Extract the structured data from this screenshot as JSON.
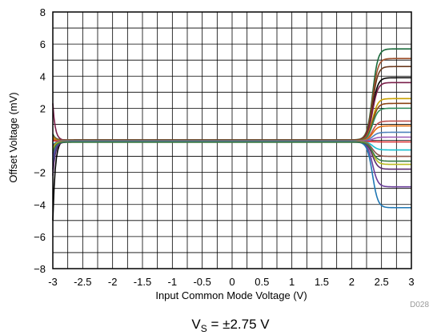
{
  "chart_data": {
    "type": "line",
    "xlabel": "Input Common Mode Voltage (V)",
    "ylabel": "Offset Voltage (mV)",
    "xlim": [
      -3,
      3
    ],
    "ylim": [
      -8,
      8
    ],
    "x_ticks": [
      -3,
      -2.5,
      -2,
      -1.5,
      -1,
      -0.5,
      0,
      0.5,
      1,
      1.5,
      2,
      2.5,
      3
    ],
    "x_tick_labels": [
      "-3",
      "-2.5",
      "-2",
      "-1.5",
      "-1",
      "-0.5",
      "0",
      "0.5",
      "1",
      "1.5",
      "2",
      "2.5",
      "3"
    ],
    "y_ticks": [
      -8,
      -6,
      -4,
      -2,
      2,
      4,
      6,
      8
    ],
    "y_tick_labels": [
      "−8",
      "−6",
      "−4",
      "−2",
      "2",
      "4",
      "6",
      "8"
    ],
    "grid": true,
    "figure_id": "D028",
    "condition": {
      "main": "V",
      "sub": "S",
      "rest": " = ±2.75 V"
    },
    "series": [
      {
        "color": "#1b6a3c",
        "left_end": 0.4,
        "right_end": 5.7
      },
      {
        "color": "#a0522d",
        "left_end": 0.3,
        "right_end": 5.1
      },
      {
        "color": "#000000",
        "left_end": -5.0,
        "right_end": 3.9
      },
      {
        "color": "#6b3a1e",
        "left_end": 0.2,
        "right_end": 4.6
      },
      {
        "color": "#7a1f4a",
        "left_end": 2.3,
        "right_end": 3.6
      },
      {
        "color": "#c8a000",
        "left_end": 0.2,
        "right_end": 2.6
      },
      {
        "color": "#8b4513",
        "left_end": 0.1,
        "right_end": 2.3
      },
      {
        "color": "#2e8b57",
        "left_end": 0.1,
        "right_end": 2.0
      },
      {
        "color": "#c0504d",
        "left_end": 0.1,
        "right_end": 1.2
      },
      {
        "color": "#e36c0a",
        "left_end": 0.1,
        "right_end": 0.9
      },
      {
        "color": "#4f81bd",
        "left_end": 0.0,
        "right_end": 0.5
      },
      {
        "color": "#9b59b6",
        "left_end": 0.0,
        "right_end": 0.2
      },
      {
        "color": "#d62728",
        "left_end": 0.0,
        "right_end": -0.1
      },
      {
        "color": "#17becf",
        "left_end": -0.3,
        "right_end": -0.6
      },
      {
        "color": "#8c564b",
        "left_end": -0.4,
        "right_end": -1.0
      },
      {
        "color": "#bcbd22",
        "left_end": -0.6,
        "right_end": -1.5
      },
      {
        "color": "#6a3d9a",
        "left_end": -1.2,
        "right_end": -2.9
      },
      {
        "color": "#1f77b4",
        "left_end": -1.8,
        "right_end": -4.2
      },
      {
        "color": "#5b2c6f",
        "left_end": -2.2,
        "right_end": -1.8
      },
      {
        "color": "#3a7d44",
        "left_end": -0.8,
        "right_end": -1.3
      }
    ]
  }
}
